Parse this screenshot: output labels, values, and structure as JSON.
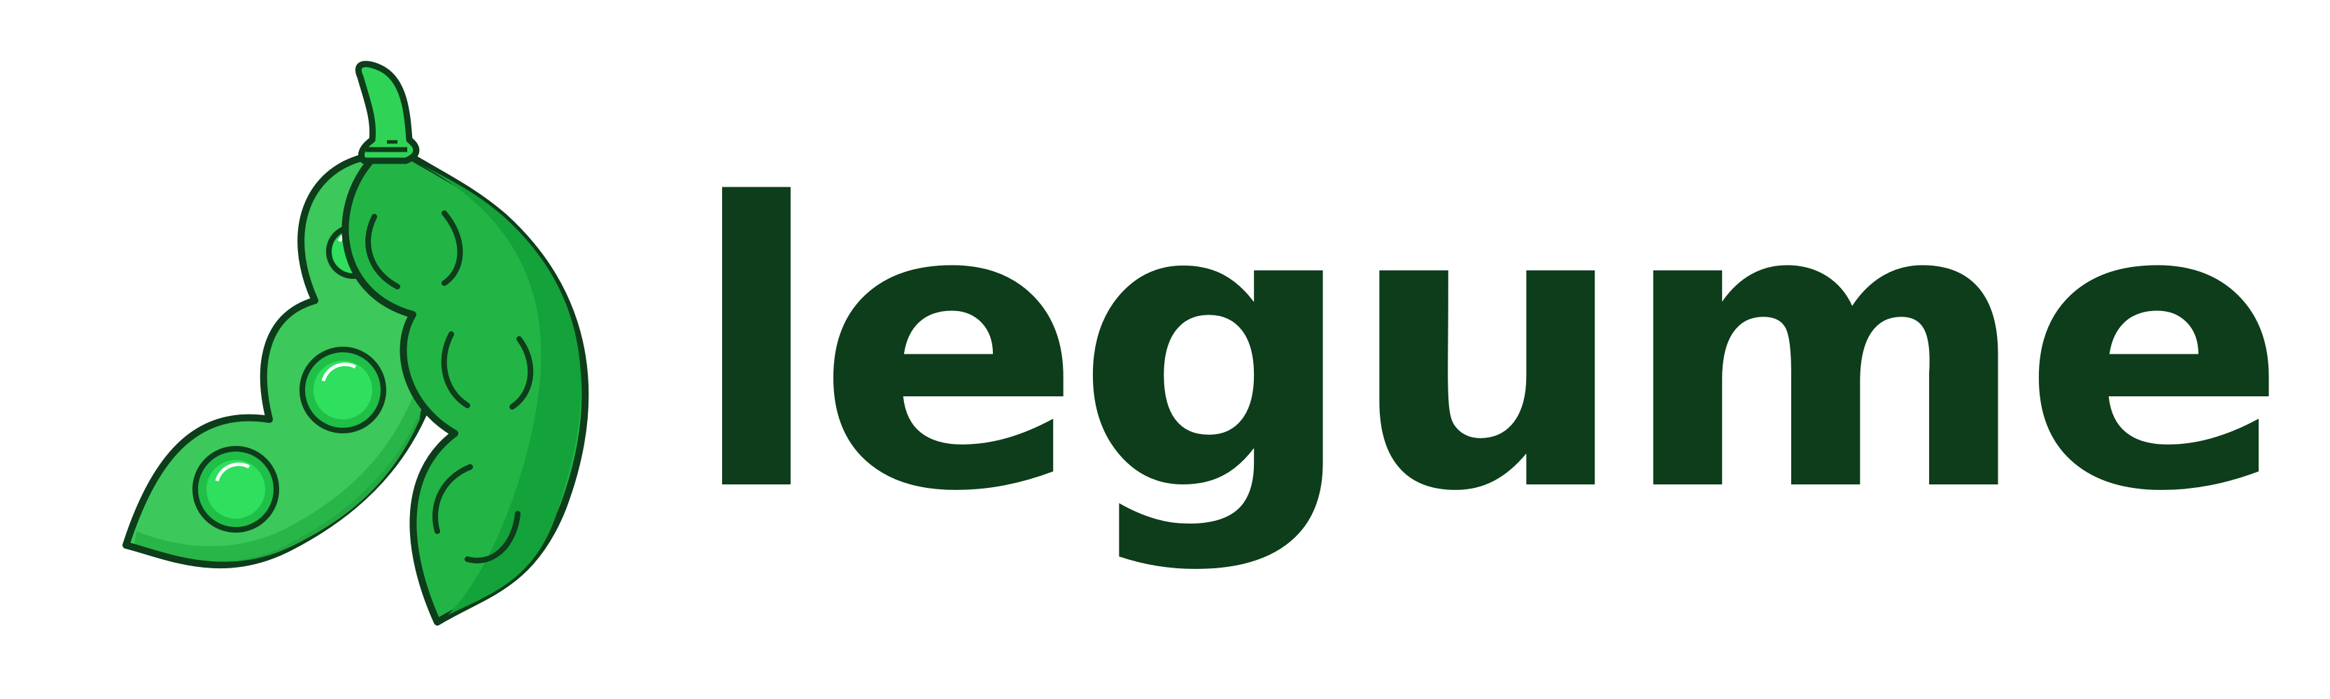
{
  "logo": {
    "wordmark": "legume",
    "icon": "pea-pod-icon",
    "colors": {
      "text": "#0d3d1a",
      "outline": "#0d3d1a",
      "pod_light": "#3cc85a",
      "pod_mid": "#22b545",
      "pod_dark": "#17a53b",
      "pea": "#2fdf5e",
      "stem": "#2fd457",
      "highlight": "#ffffff"
    }
  }
}
